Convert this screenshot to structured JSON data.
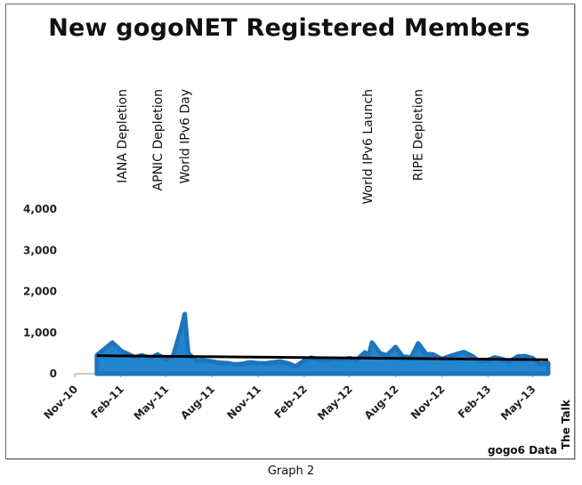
{
  "chart_data": {
    "type": "area",
    "title": "New gogoNET Registered Members",
    "caption": "Graph 2",
    "source": "gogo6 Data",
    "side_label": "The Talk",
    "ylim": [
      0,
      4000
    ],
    "y_ticks": [
      "0",
      "1,000",
      "2,000",
      "3,000",
      "4,000"
    ],
    "x_ticks": [
      "Nov-10",
      "Feb-11",
      "May-11",
      "Aug-11",
      "Nov-11",
      "Feb-12",
      "May-12",
      "Aug-12",
      "Nov-12",
      "Feb-13",
      "May-13"
    ],
    "x_range": [
      "2010-11-01",
      "2013-06-01"
    ],
    "grid": false,
    "colors": {
      "area": "#2185d0",
      "trend": "#000000"
    },
    "series": [
      {
        "x": [
          "2010-12-15",
          "2011-01-01",
          "2011-01-15",
          "2011-02-01",
          "2011-02-15",
          "2011-03-01",
          "2011-03-15",
          "2011-04-01",
          "2011-04-15",
          "2011-05-01",
          "2011-05-15",
          "2011-06-01",
          "2011-06-08",
          "2011-06-15",
          "2011-07-01",
          "2011-07-15",
          "2011-08-01",
          "2011-08-15",
          "2011-09-01",
          "2011-09-15",
          "2011-10-01",
          "2011-10-15",
          "2011-11-01",
          "2011-11-15",
          "2011-12-01",
          "2011-12-15",
          "2012-01-01",
          "2012-01-15",
          "2012-02-01",
          "2012-02-15",
          "2012-03-01",
          "2012-03-15",
          "2012-04-01",
          "2012-04-15",
          "2012-05-01",
          "2012-05-15",
          "2012-06-01",
          "2012-06-08",
          "2012-06-15",
          "2012-07-01",
          "2012-07-15",
          "2012-08-01",
          "2012-08-15",
          "2012-09-01",
          "2012-09-15",
          "2012-10-01",
          "2012-10-15",
          "2012-11-01",
          "2012-11-15",
          "2012-12-01",
          "2012-12-15",
          "2013-01-01",
          "2013-01-15",
          "2013-02-01",
          "2013-02-15",
          "2013-03-01",
          "2013-03-15",
          "2013-04-01",
          "2013-04-15",
          "2013-05-01",
          "2013-05-15",
          "2013-06-01"
        ],
        "values": [
          450,
          620,
          760,
          560,
          480,
          400,
          450,
          380,
          470,
          360,
          400,
          1100,
          1450,
          500,
          320,
          330,
          300,
          270,
          260,
          230,
          240,
          280,
          260,
          250,
          280,
          300,
          250,
          180,
          320,
          390,
          350,
          330,
          370,
          340,
          380,
          330,
          520,
          430,
          760,
          500,
          450,
          650,
          420,
          400,
          740,
          480,
          470,
          360,
          420,
          480,
          530,
          430,
          300,
          330,
          400,
          360,
          290,
          420,
          430,
          380,
          240,
          260
        ]
      }
    ],
    "trend": {
      "x": [
        "2010-12-15",
        "2013-06-01"
      ],
      "values": [
        440,
        340
      ]
    },
    "annotations": [
      {
        "label": "IANA Depletion",
        "x": "2011-02-03"
      },
      {
        "label": "APNIC Depletion",
        "x": "2011-04-15"
      },
      {
        "label": "World IPv6 Day",
        "x": "2011-06-08"
      },
      {
        "label": "World IPv6 Launch",
        "x": "2012-06-06"
      },
      {
        "label": "RIPE Depletion",
        "x": "2012-09-14"
      }
    ]
  }
}
